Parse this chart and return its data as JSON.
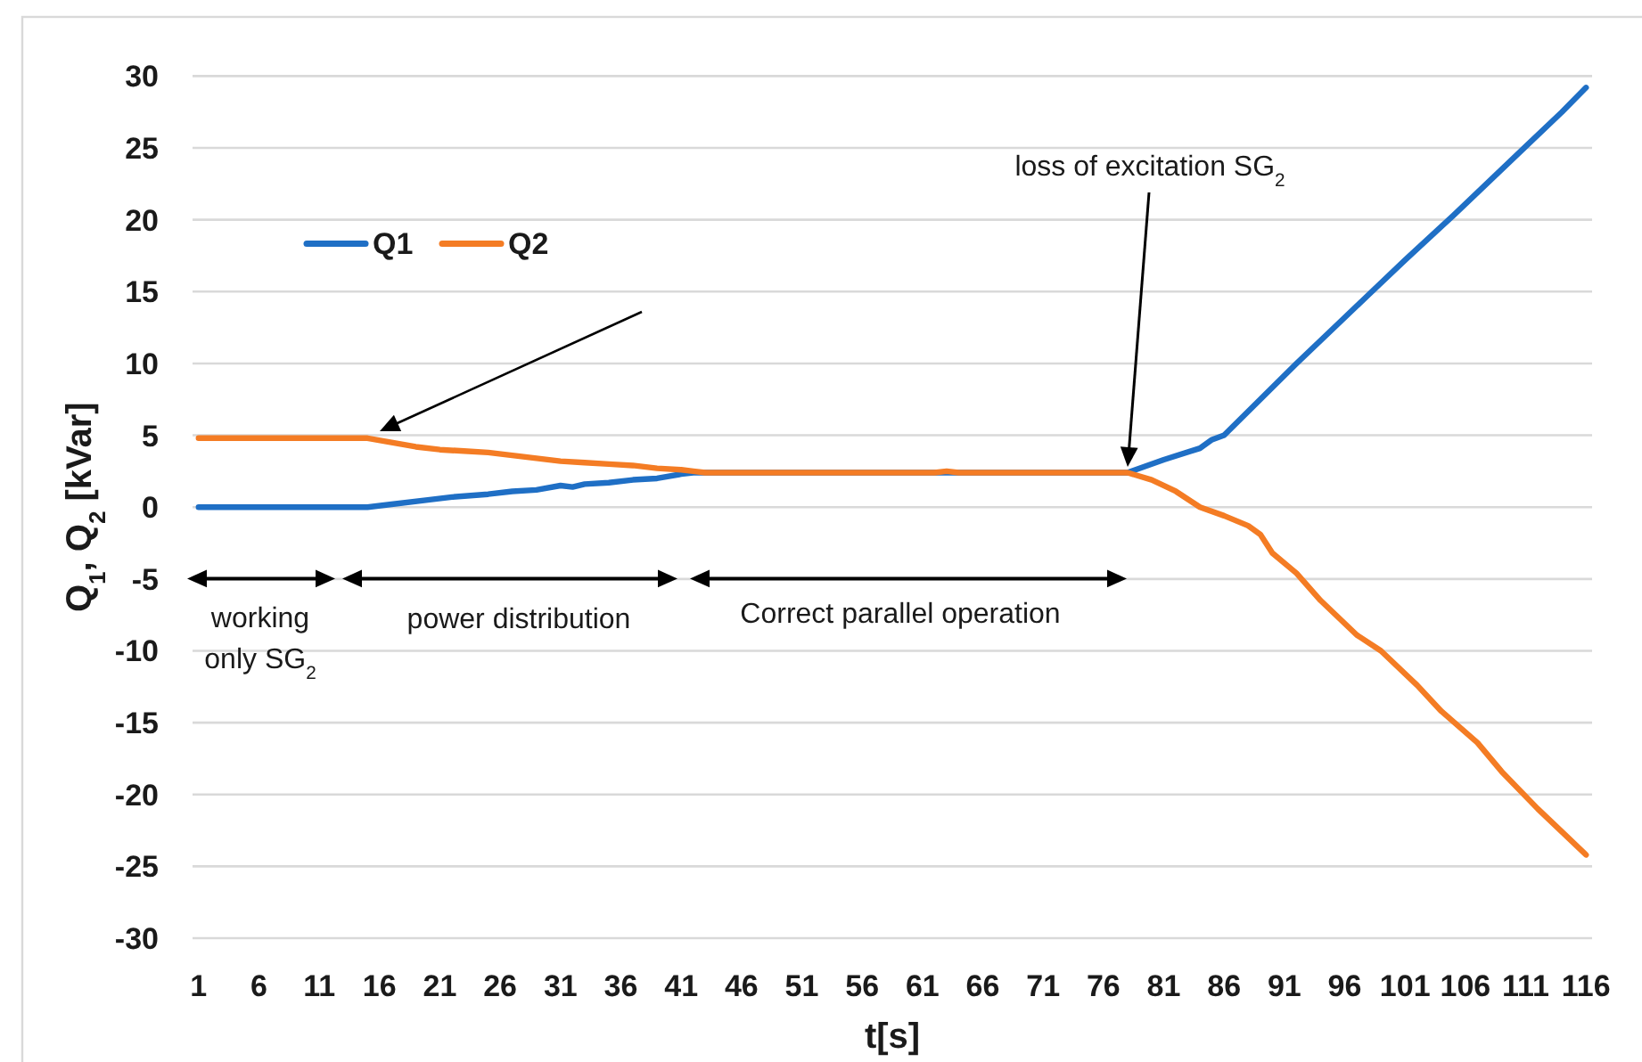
{
  "chart_data": {
    "type": "line",
    "xlabel": "t[s]",
    "ylabel": "Q$_{1}$, Q$_{2}$ [kVar]",
    "xlim": [
      0.5,
      116.5
    ],
    "xticks": [
      1,
      6,
      11,
      16,
      21,
      26,
      31,
      36,
      41,
      46,
      51,
      56,
      61,
      66,
      71,
      76,
      81,
      86,
      91,
      96,
      101,
      106,
      111,
      116
    ],
    "ylim": [
      -30,
      30
    ],
    "yticks": [
      -30,
      -25,
      -20,
      -15,
      -10,
      -5,
      0,
      5,
      10,
      15,
      20,
      25,
      30
    ],
    "grid": "y",
    "legend": "top left",
    "series": [
      {
        "name": "Q1",
        "color": "#1f6fc5",
        "x": [
          1,
          15,
          17,
          20,
          22,
          25,
          27,
          29,
          31,
          32,
          33,
          35,
          37,
          39,
          41,
          42,
          50,
          60,
          70,
          78,
          81,
          84,
          85,
          86,
          89,
          92,
          95,
          98,
          101,
          105,
          108,
          111,
          114,
          116
        ],
        "values": [
          0,
          0,
          0.2,
          0.5,
          0.7,
          0.9,
          1.1,
          1.2,
          1.5,
          1.4,
          1.6,
          1.7,
          1.9,
          2.0,
          2.3,
          2.4,
          2.4,
          2.4,
          2.4,
          2.4,
          3.3,
          4.1,
          4.7,
          5.0,
          7.5,
          10.0,
          12.4,
          14.8,
          17.2,
          20.3,
          22.7,
          25.1,
          27.5,
          29.2
        ]
      },
      {
        "name": "Q2",
        "color": "#f47c24",
        "x": [
          1,
          15,
          17,
          19,
          21,
          23,
          25,
          27,
          29,
          31,
          33,
          35,
          37,
          39,
          41,
          42,
          43,
          45,
          55,
          62,
          63,
          64,
          70,
          78,
          80,
          82,
          84,
          86,
          88,
          89,
          90,
          92,
          94,
          97,
          99,
          102,
          104,
          107,
          109,
          112,
          114,
          116
        ],
        "values": [
          4.8,
          4.8,
          4.5,
          4.2,
          4.0,
          3.9,
          3.8,
          3.6,
          3.4,
          3.2,
          3.1,
          3.0,
          2.9,
          2.7,
          2.6,
          2.5,
          2.4,
          2.4,
          2.4,
          2.4,
          2.5,
          2.4,
          2.4,
          2.4,
          1.9,
          1.1,
          0.0,
          -0.6,
          -1.3,
          -1.9,
          -3.2,
          -4.6,
          -6.5,
          -8.9,
          -10.0,
          -12.4,
          -14.2,
          -16.4,
          -18.4,
          -21.0,
          -22.6,
          -24.2
        ]
      }
    ],
    "annotations": [
      "loss of excitation SG$_{2}$",
      "working\nonly SG$_{2}$",
      "power distribution",
      "Correct parallel operation"
    ]
  }
}
